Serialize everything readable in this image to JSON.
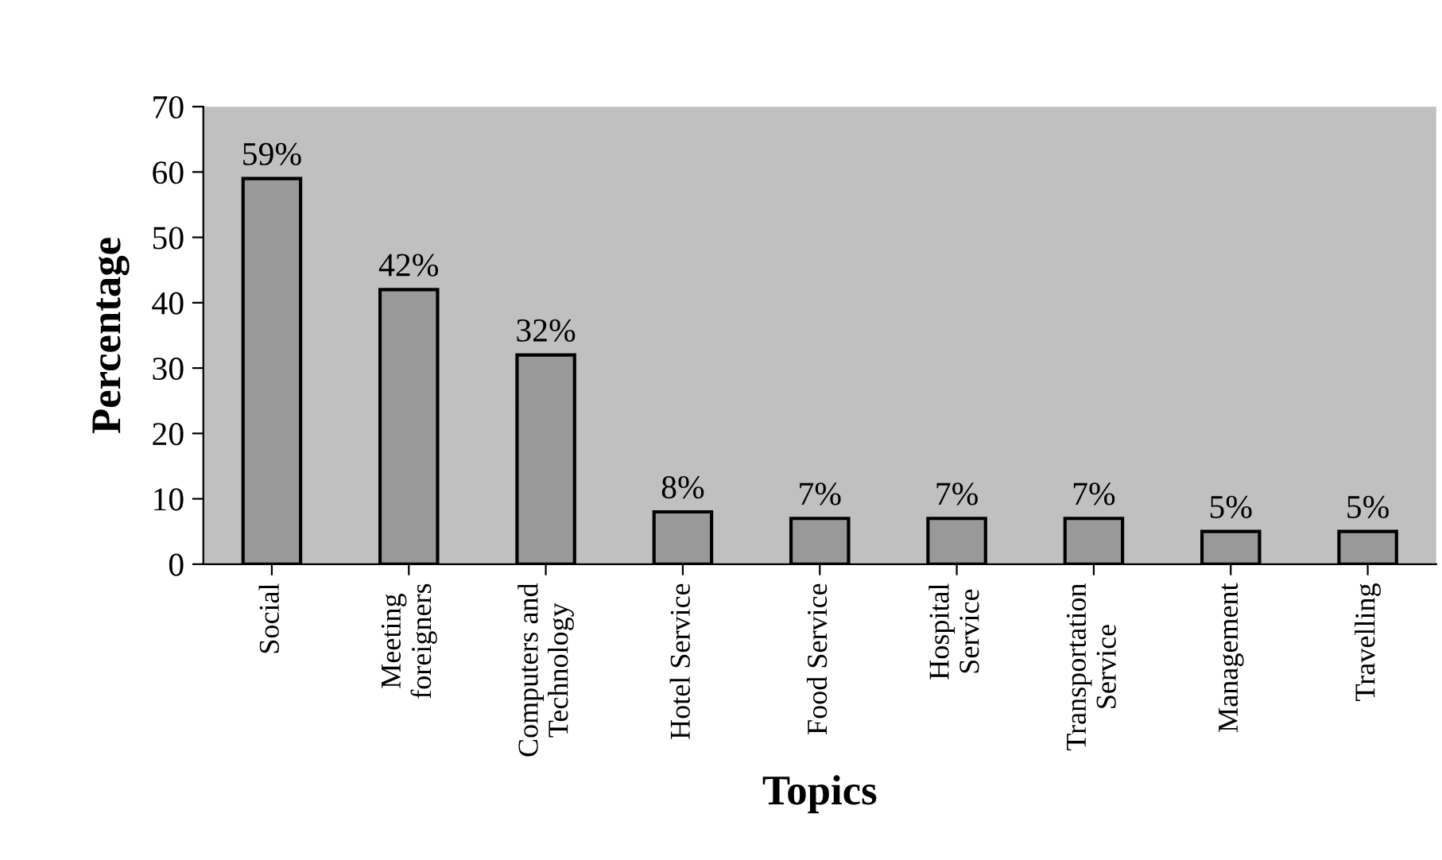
{
  "chart_data": {
    "type": "bar",
    "xlabel": "Topics",
    "ylabel": "Percentage",
    "categories": [
      "Social",
      "Meeting\nforeigners",
      "Computers and\nTechnology",
      "Hotel Service",
      "Food Service",
      "Hospital\nService",
      "Transportation\nService",
      "Management",
      "Travelling"
    ],
    "values": [
      59,
      42,
      32,
      8,
      7,
      7,
      7,
      5,
      5
    ],
    "value_labels": [
      "59%",
      "42%",
      "32%",
      "8%",
      "7%",
      "7%",
      "7%",
      "5%",
      "5%"
    ],
    "color": "#999999",
    "ylim": [
      0,
      70
    ],
    "yticks": [
      0,
      10,
      20,
      30,
      40,
      50,
      60,
      70
    ],
    "grid": false
  }
}
